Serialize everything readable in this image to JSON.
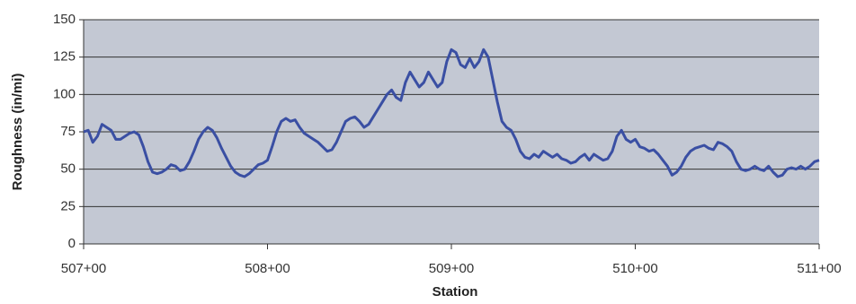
{
  "chart_data": {
    "type": "line",
    "x_label": "Station",
    "y_label": "Roughness (in/mi)",
    "xlim": [
      50700,
      51100
    ],
    "xticks": [
      {
        "value": 50700,
        "label": "507+00"
      },
      {
        "value": 50800,
        "label": "508+00"
      },
      {
        "value": 50900,
        "label": "509+00"
      },
      {
        "value": 51000,
        "label": "510+00"
      },
      {
        "value": 51100,
        "label": "511+00"
      }
    ],
    "ylim": [
      0,
      150
    ],
    "yticks": [
      0,
      25,
      50,
      75,
      100,
      125,
      150
    ],
    "grid": true,
    "background": "#c3c8d3",
    "series": [
      {
        "color": "#3a4fa3",
        "x": [
          50700,
          50702.5,
          50705,
          50707.5,
          50710,
          50712.5,
          50715,
          50717.5,
          50720,
          50722.5,
          50725,
          50727.5,
          50730,
          50732.5,
          50735,
          50737.5,
          50740,
          50742.5,
          50745,
          50747.5,
          50750,
          50752.5,
          50755,
          50757.5,
          50760,
          50762.5,
          50765,
          50767.5,
          50770,
          50772.5,
          50775,
          50777.5,
          50780,
          50782.5,
          50785,
          50787.5,
          50790,
          50792.5,
          50795,
          50797.5,
          50800,
          50802.5,
          50805,
          50807.5,
          50810,
          50812.5,
          50815,
          50817.5,
          50820,
          50822.5,
          50825,
          50827.5,
          50830,
          50832.5,
          50835,
          50837.5,
          50840,
          50842.5,
          50845,
          50847.5,
          50850,
          50852.5,
          50855,
          50857.5,
          50860,
          50862.5,
          50865,
          50867.5,
          50870,
          50872.5,
          50875,
          50877.5,
          50880,
          50882.5,
          50885,
          50887.5,
          50890,
          50892.5,
          50895,
          50897.5,
          50900,
          50902.5,
          50905,
          50907.5,
          50910,
          50912.5,
          50915,
          50917.5,
          50920,
          50922.5,
          50925,
          50927.5,
          50930,
          50932.5,
          50935,
          50937.5,
          50940,
          50942.5,
          50945,
          50947.5,
          50950,
          50952.5,
          50955,
          50957.5,
          50960,
          50962.5,
          50965,
          50967.5,
          50970,
          50972.5,
          50975,
          50977.5,
          50980,
          50982.5,
          50985,
          50987.5,
          50990,
          50992.5,
          50995,
          50997.5,
          51000,
          51002.5,
          51005,
          51007.5,
          51010,
          51012.5,
          51015,
          51017.5,
          51020,
          51022.5,
          51025,
          51027.5,
          51030,
          51032.5,
          51035,
          51037.5,
          51040,
          51042.5,
          51045,
          51047.5,
          51050,
          51052.5,
          51055,
          51057.5,
          51060,
          51062.5,
          51065,
          51067.5,
          51070,
          51072.5,
          51075,
          51077.5,
          51080,
          51082.5,
          51085,
          51087.5,
          51090,
          51092.5,
          51095,
          51097.5,
          51100
        ],
        "values": [
          75,
          76,
          68,
          72,
          80,
          78,
          76,
          70,
          70,
          72,
          74,
          75,
          73,
          65,
          55,
          48,
          47,
          48,
          50,
          53,
          52,
          49,
          50,
          55,
          62,
          70,
          75,
          78,
          76,
          71,
          64,
          58,
          52,
          48,
          46,
          45,
          47,
          50,
          53,
          54,
          56,
          65,
          75,
          82,
          84,
          82,
          83,
          78,
          74,
          72,
          70,
          68,
          65,
          62,
          63,
          68,
          75,
          82,
          84,
          85,
          82,
          78,
          80,
          85,
          90,
          95,
          100,
          103,
          98,
          96,
          108,
          115,
          110,
          105,
          108,
          115,
          110,
          105,
          108,
          122,
          130,
          128,
          120,
          118,
          124,
          118,
          122,
          130,
          125,
          110,
          95,
          82,
          78,
          76,
          70,
          62,
          58,
          57,
          60,
          58,
          62,
          60,
          58,
          60,
          57,
          56,
          54,
          55,
          58,
          60,
          56,
          60,
          58,
          56,
          57,
          62,
          72,
          76,
          70,
          68,
          70,
          65,
          64,
          62,
          63,
          60,
          56,
          52,
          46,
          48,
          52,
          58,
          62,
          64,
          65,
          66,
          64,
          63,
          68,
          67,
          65,
          62,
          55,
          50,
          49,
          50,
          52,
          50,
          49,
          52,
          48,
          45,
          46,
          50,
          51,
          50,
          52,
          50,
          52,
          55,
          56
        ]
      }
    ]
  }
}
